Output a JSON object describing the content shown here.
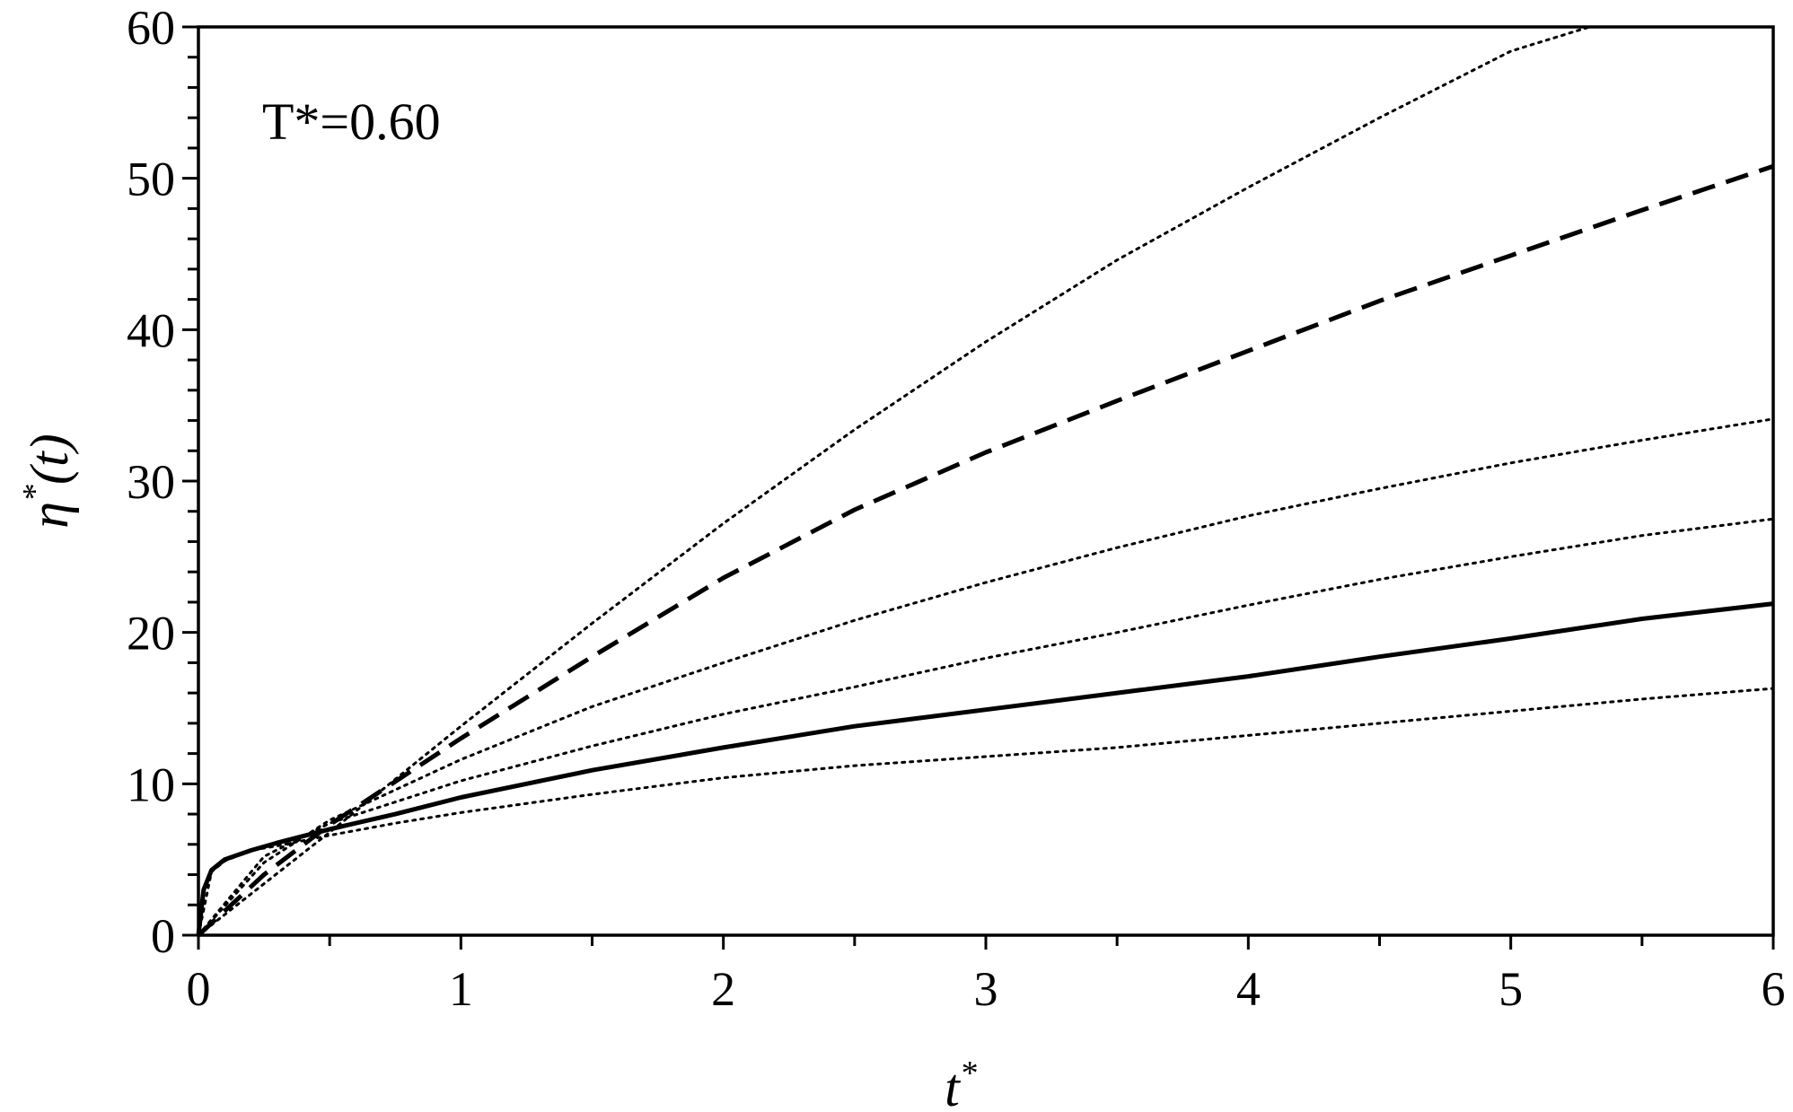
{
  "chart_data": {
    "type": "line",
    "title": "",
    "annotation": "T*=0.60",
    "xlabel": {
      "base": "t",
      "sup": "*"
    },
    "ylabel": {
      "base": "η",
      "sup": "*",
      "rest": "(t)"
    },
    "xlim": [
      0,
      6
    ],
    "ylim": [
      0,
      60
    ],
    "xticks": [
      "0",
      "1",
      "2",
      "3",
      "4",
      "5",
      "6"
    ],
    "yticks": [
      "0",
      "10",
      "20",
      "30",
      "40",
      "50",
      "60"
    ],
    "grid": false,
    "legend": "none",
    "series": [
      {
        "style": "dotted",
        "x": [
          0,
          0.5,
          1,
          1.5,
          2,
          2.5,
          3,
          3.5,
          4,
          4.5,
          5,
          5.3
        ],
        "y": [
          0,
          6.8,
          13.8,
          20.6,
          27.2,
          33.4,
          39.2,
          44.6,
          49.4,
          54.0,
          58.4,
          60.0
        ]
      },
      {
        "style": "dashed",
        "x": [
          0,
          0.25,
          0.5,
          1,
          1.5,
          2,
          2.5,
          3,
          3.5,
          4,
          4.5,
          5,
          5.5,
          6
        ],
        "y": [
          0,
          4.0,
          7.3,
          13.0,
          18.4,
          23.6,
          28.1,
          31.9,
          35.3,
          38.6,
          41.9,
          44.9,
          47.9,
          50.8
        ]
      },
      {
        "style": "dotted",
        "x": [
          0,
          0.25,
          0.5,
          1,
          1.5,
          2,
          2.5,
          3,
          3.5,
          4,
          4.5,
          5,
          5.5,
          6
        ],
        "y": [
          0,
          4.8,
          7.6,
          11.6,
          15.1,
          18.0,
          20.8,
          23.3,
          25.6,
          27.7,
          29.5,
          31.2,
          32.7,
          34.1
        ]
      },
      {
        "style": "dotted",
        "x": [
          0,
          0.25,
          0.5,
          1,
          1.5,
          2,
          2.5,
          3,
          3.5,
          4,
          4.5,
          5,
          5.5,
          6
        ],
        "y": [
          0,
          5.2,
          7.4,
          10.2,
          12.5,
          14.6,
          16.4,
          18.3,
          20.0,
          21.8,
          23.5,
          25.0,
          26.4,
          27.5
        ]
      },
      {
        "style": "solid",
        "x": [
          0,
          0.02,
          0.05,
          0.1,
          0.2,
          0.3,
          0.5,
          0.75,
          1,
          1.5,
          2,
          2.5,
          3,
          3.5,
          4,
          4.5,
          5,
          5.5,
          6
        ],
        "y": [
          0,
          3.0,
          4.3,
          5.0,
          5.6,
          6.1,
          7.0,
          8.0,
          9.1,
          10.9,
          12.4,
          13.8,
          14.9,
          16.0,
          17.1,
          18.4,
          19.6,
          20.9,
          21.9
        ]
      },
      {
        "style": "dotted",
        "x": [
          0,
          0.05,
          0.1,
          0.2,
          0.3,
          0.5,
          0.75,
          1,
          1.5,
          2,
          2.5,
          3,
          3.5,
          4,
          4.5,
          5,
          5.5,
          6
        ],
        "y": [
          0,
          4.2,
          4.9,
          5.6,
          5.9,
          6.6,
          7.4,
          8.1,
          9.3,
          10.4,
          11.2,
          11.8,
          12.4,
          13.2,
          14.0,
          14.8,
          15.6,
          16.3
        ]
      }
    ]
  }
}
